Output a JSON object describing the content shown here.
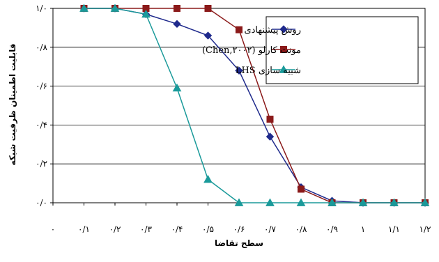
{
  "chart_data": {
    "type": "line",
    "xlabel": "سطح تقاضا",
    "ylabel": "قابلیت اطمینان ظرفیت شبکه",
    "x_tick_labels": [
      "۰",
      "۰/۱",
      "۰/۲",
      "۰/۳",
      "۰/۴",
      "۰/۵",
      "۰/۶",
      "۰/۷",
      "۰/۸",
      "۰/۹",
      "۱",
      "۱/۱",
      "۱/۲"
    ],
    "y_tick_labels": [
      "۰/۰",
      "۰/۲",
      "۰/۴",
      "۰/۶",
      "۰/۸",
      "۱/۰"
    ],
    "x": [
      0.1,
      0.2,
      0.3,
      0.4,
      0.5,
      0.6,
      0.7,
      0.8,
      0.9,
      1.0,
      1.1,
      1.2
    ],
    "xlim": [
      0,
      1.2
    ],
    "ylim": [
      0,
      1.0
    ],
    "grid": "horizontal",
    "legend_position": "top-right",
    "series": [
      {
        "name": "روش پیشنهادی",
        "marker": "diamond",
        "color": "#1f2a8c",
        "values": [
          1.0,
          1.0,
          0.97,
          0.92,
          0.86,
          0.68,
          0.34,
          0.08,
          0.01,
          0.0,
          0.0,
          0.0
        ]
      },
      {
        "name": "مونت کارلو (Chen,۲۰۰۲)",
        "marker": "square",
        "color": "#8b1a1a",
        "values": [
          1.0,
          1.0,
          1.0,
          1.0,
          1.0,
          0.89,
          0.43,
          0.07,
          0.0,
          0.0,
          0.0,
          0.0
        ]
      },
      {
        "name": "شبیه سازی LHS",
        "marker": "triangle",
        "color": "#1a9a9a",
        "values": [
          1.0,
          1.0,
          0.97,
          0.59,
          0.12,
          0.0,
          0.0,
          0.0,
          0.0,
          0.0,
          0.0,
          0.0
        ]
      }
    ]
  }
}
